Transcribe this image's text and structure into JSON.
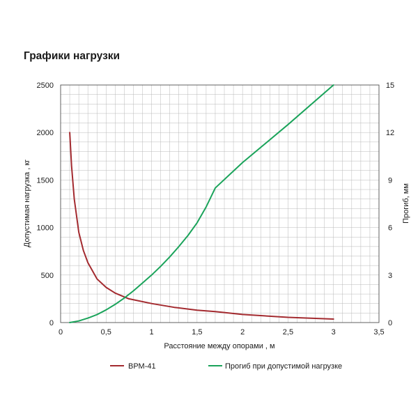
{
  "title": "Графики нагрузки",
  "chart_data": {
    "type": "line",
    "title": "Графики нагрузки",
    "xlabel": "Расстояние между опорами , м",
    "ylabel_left": "Допустимая нагрузка ,  кг",
    "ylabel_right": "Прогиб, мм",
    "xlim": [
      0,
      3.5
    ],
    "ylim_left": [
      0,
      2500
    ],
    "ylim_right": [
      0,
      15
    ],
    "x_ticks": [
      "0",
      "0,5",
      "1",
      "1,5",
      "2",
      "2,5",
      "3",
      "3,5"
    ],
    "y_left_ticks": [
      "0",
      "500",
      "1000",
      "1500",
      "2000",
      "2500"
    ],
    "y_right_ticks": [
      "0",
      "3",
      "6",
      "9",
      "12",
      "15"
    ],
    "grid": true,
    "legend_position": "bottom",
    "series": [
      {
        "name": "ВРМ-41",
        "axis": "left",
        "color": "#a32a2f",
        "x": [
          0.1,
          0.12,
          0.15,
          0.2,
          0.25,
          0.3,
          0.4,
          0.5,
          0.6,
          0.75,
          1.0,
          1.25,
          1.5,
          1.7,
          2.0,
          2.5,
          3.0
        ],
        "y": [
          2000,
          1650,
          1300,
          950,
          760,
          630,
          460,
          370,
          310,
          250,
          200,
          160,
          130,
          115,
          85,
          55,
          37
        ]
      },
      {
        "name": "Прогиб при допустимой нагрузке",
        "axis": "right",
        "color": "#1aa35a",
        "x": [
          0.1,
          0.2,
          0.3,
          0.4,
          0.5,
          0.6,
          0.7,
          0.8,
          0.9,
          1.0,
          1.1,
          1.2,
          1.3,
          1.4,
          1.5,
          1.6,
          1.7,
          2.0,
          2.5,
          3.0
        ],
        "y": [
          0,
          0.1,
          0.28,
          0.5,
          0.8,
          1.15,
          1.55,
          2.0,
          2.5,
          3.0,
          3.55,
          4.15,
          4.8,
          5.5,
          6.3,
          7.3,
          8.5,
          10.1,
          12.5,
          15.0
        ]
      }
    ]
  }
}
